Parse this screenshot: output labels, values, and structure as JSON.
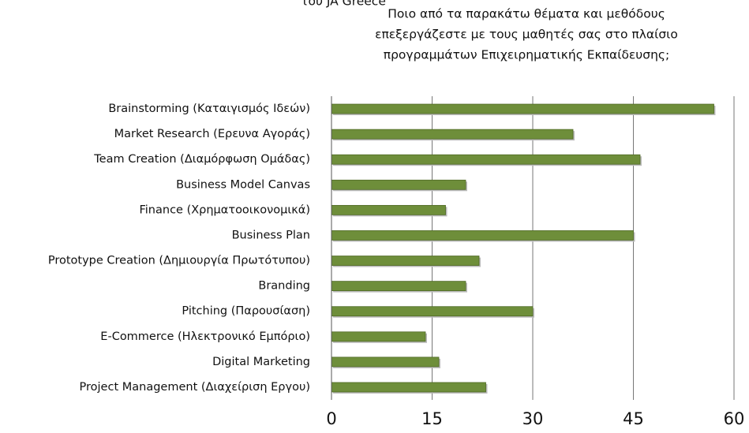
{
  "chart_data": {
    "type": "bar",
    "orientation": "horizontal",
    "pretitle": "του JA Greece",
    "title": [
      "Ποιο από τα παρακάτω θέματα και μεθόδους",
      "επεξεργάζεστε με τους μαθητές σας στο πλαίσιο",
      "προγραμμάτων Επιχειρηματικής Εκπαίδευσης;"
    ],
    "categories": [
      "Brainstorming (Καταιγισμός Ιδεών)",
      "Market Research (Ερευνα Αγοράς)",
      "Team Creation (Διαμόρφωση Ομάδας)",
      "Business Model Canvas",
      "Finance (Χρηματοοικονομικά)",
      "Business Plan",
      "Prototype Creation (Δημιουργία Πρωτότυπου)",
      "Branding",
      "Pitching (Παρουσίαση)",
      "E-Commerce (Ηλεκτρονικό Εμπόριο)",
      "Digital Marketing",
      "Project Management (Διαχείριση Εργου)"
    ],
    "values": [
      57,
      36,
      46,
      20,
      17,
      45,
      22,
      20,
      30,
      14,
      16,
      23
    ],
    "color": "#6e8e3a",
    "xlim": [
      0,
      60
    ],
    "xticks": [
      0,
      15,
      30,
      45,
      60
    ],
    "grid": true
  }
}
